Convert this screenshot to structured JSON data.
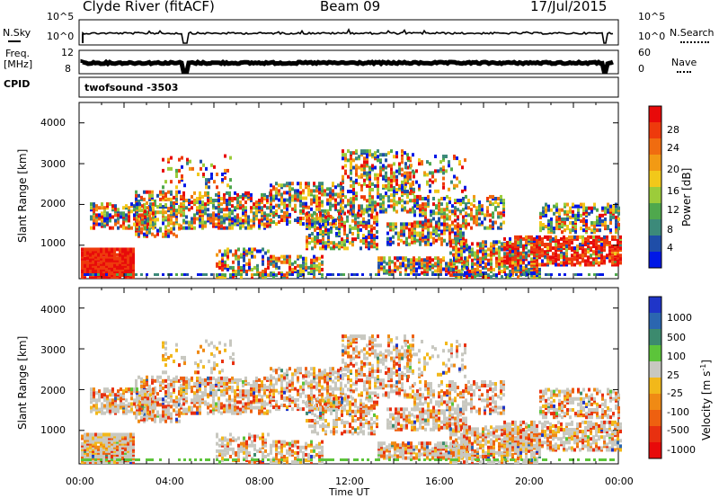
{
  "header": {
    "station": "Clyde River (fitACF)",
    "beam": "Beam 09",
    "date": "17/Jul/2015"
  },
  "panels": {
    "nsky_label": "N.Sky",
    "nsky_ticks": [
      "10^5",
      "10^0"
    ],
    "nsearch_label": "N.Search",
    "nsearch_ticks": [
      "10^5",
      "10^0"
    ],
    "freq_label": "Freq.",
    "freq_unit": "[MHz]",
    "freq_ticks": [
      "12",
      "8"
    ],
    "nave_label": "Nave",
    "nave_ticks": [
      "60",
      "0"
    ],
    "cpid_label": "CPID",
    "cpid_value": "twofsound -3503"
  },
  "colors": {
    "power": [
      "#0018e6",
      "#1f4ea8",
      "#3c8a7a",
      "#4fa84d",
      "#9ccc3a",
      "#f2c81a",
      "#f29a14",
      "#f06c10",
      "#ee3a0c",
      "#e80a0a"
    ],
    "velocity": [
      "#1f35c8",
      "#2b66b0",
      "#3c8a6e",
      "#5cc43a",
      "#c8c8c0",
      "#f2b81a",
      "#f08a14",
      "#ee6010",
      "#e83010",
      "#e80a0a"
    ],
    "ground_scatter": "#c8c8c0"
  },
  "chart_data": [
    {
      "type": "heatmap",
      "name": "power",
      "ylabel": "Slant Range [km]",
      "y_ticks": [
        "1000",
        "2000",
        "3000",
        "4000"
      ],
      "ylim": [
        180,
        4500
      ],
      "x_ticks": [
        "00:00",
        "04:00",
        "08:00",
        "12:00",
        "16:00",
        "20:00",
        "00:00"
      ],
      "colorbar_label": "Power [dB]",
      "colorbar_ticks": [
        "4",
        "8",
        "12",
        "16",
        "20",
        "24",
        "28"
      ],
      "colorbar_range": [
        0,
        30
      ]
    },
    {
      "type": "heatmap",
      "name": "velocity",
      "ylabel": "Slant Range [km]",
      "y_ticks": [
        "1000",
        "2000",
        "3000",
        "4000"
      ],
      "ylim": [
        180,
        4500
      ],
      "x_ticks": [
        "00:00",
        "04:00",
        "08:00",
        "12:00",
        "16:00",
        "20:00",
        "00:00"
      ],
      "xlabel": "Time UT",
      "colorbar_label": "Velocity [m s",
      "colorbar_label_exp": "-1",
      "colorbar_label_close": "]",
      "colorbar_ticks": [
        "1000",
        "500",
        "100",
        "25",
        "-25",
        "-100",
        "-500",
        "-1000"
      ]
    }
  ]
}
